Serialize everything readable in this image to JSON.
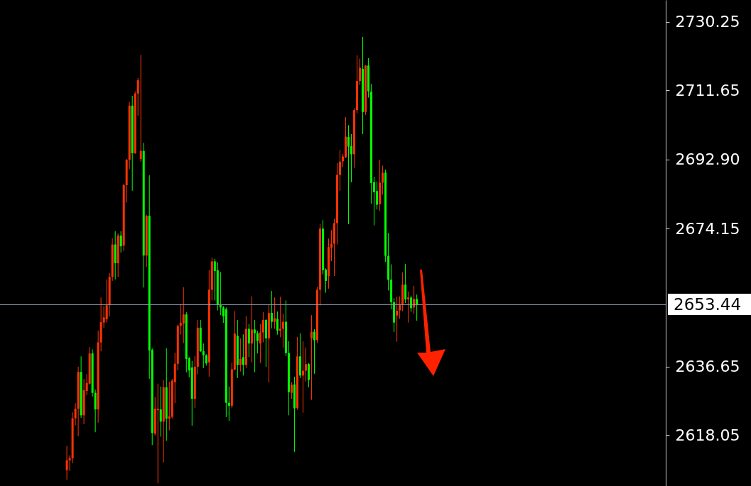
{
  "chart_data": {
    "type": "candlestick",
    "categories": [
      null,
      null,
      null,
      null,
      null,
      null,
      null,
      null,
      null,
      null,
      null,
      null,
      null,
      null,
      null,
      null,
      null,
      null,
      null,
      null,
      null,
      null,
      null,
      null,
      null,
      null,
      null,
      null,
      null,
      null,
      null,
      null,
      null,
      null,
      null,
      null,
      null,
      null,
      null,
      null,
      null,
      null,
      null,
      null,
      null,
      null,
      null,
      null,
      null,
      null,
      null,
      null,
      null,
      null,
      null,
      null,
      null,
      null,
      null,
      null,
      null,
      null,
      null,
      null,
      null,
      null,
      null,
      null,
      null,
      null,
      null,
      null,
      null,
      null,
      null,
      null,
      null,
      null,
      null,
      null,
      null,
      null,
      null,
      null,
      null,
      null,
      null,
      null,
      null,
      null,
      null,
      null,
      null,
      null,
      null,
      null,
      null,
      null,
      null,
      null,
      null,
      null,
      null,
      null,
      null,
      null,
      null,
      null,
      null,
      null,
      null,
      null,
      null,
      null,
      null,
      null,
      null,
      null,
      null,
      null,
      null,
      null,
      null,
      null,
      null,
      null,
      null,
      null,
      null,
      null,
      null,
      null,
      null,
      null,
      null,
      null,
      null,
      null,
      null,
      null,
      null,
      null,
      null,
      null,
      null,
      null,
      null,
      null,
      null,
      null,
      null,
      null,
      null,
      null,
      null,
      null,
      null,
      null,
      null,
      null,
      null,
      null,
      null,
      null,
      null,
      null,
      null,
      null,
      null,
      null,
      null,
      null,
      null,
      null,
      null,
      null,
      null,
      null,
      null,
      null,
      null,
      null,
      null,
      null,
      null,
      null,
      null,
      null,
      null,
      null,
      null,
      null,
      null,
      null,
      null,
      null,
      null,
      null,
      null,
      null,
      null,
      null,
      null,
      null,
      null,
      null,
      null,
      null,
      null,
      null,
      null,
      null,
      null,
      null,
      null,
      null,
      null,
      null,
      null,
      null,
      null,
      null,
      null,
      null,
      null,
      null,
      null,
      null,
      null,
      null,
      null,
      null,
      null,
      null
    ],
    "ohlc": [
      null,
      null,
      null,
      null,
      null,
      null,
      null,
      null,
      null,
      null,
      null,
      null,
      null,
      null,
      null,
      null,
      null,
      null,
      null,
      null,
      null,
      null,
      null,
      [
        2608.5,
        2615.1,
        2605.9,
        2611.2
      ],
      [
        2611.2,
        2612.6,
        2608.3,
        2611.8
      ],
      [
        2611.7,
        2624.2,
        2610.4,
        2622.6
      ],
      [
        2622.6,
        2626.7,
        2620.7,
        2625.2
      ],
      [
        2625.2,
        2636.6,
        2617.7,
        2635.2
      ],
      [
        2635.2,
        2639.4,
        2622.7,
        2623.4
      ],
      [
        2623.4,
        2633.3,
        2621.0,
        2630.2
      ],
      [
        2630.0,
        2634.6,
        2628.9,
        2632.2
      ],
      [
        2632.0,
        2641.9,
        2631.7,
        2640.2
      ],
      [
        2640.2,
        2641.3,
        2628.5,
        2629.5
      ],
      [
        2629.5,
        2630.4,
        2618.8,
        2625.0
      ],
      [
        2625.0,
        2646.4,
        2621.4,
        2643.2
      ],
      [
        2643.2,
        2655.4,
        2640.8,
        2648.7
      ],
      [
        2648.6,
        2653.1,
        2647.2,
        2650.0
      ],
      [
        2649.5,
        2660.3,
        2648.6,
        2653.3
      ],
      [
        2653.3,
        2662.0,
        2650.3,
        2661.0
      ],
      [
        2661.0,
        2671.5,
        2659.9,
        2669.8
      ],
      [
        2669.8,
        2673.4,
        2660.3,
        2664.7
      ],
      [
        2664.7,
        2672.8,
        2661.0,
        2672.2
      ],
      [
        2672.2,
        2673.4,
        2667.6,
        2669.3
      ],
      [
        2669.5,
        2686.3,
        2668.0,
        2685.9
      ],
      [
        2685.9,
        2693.0,
        2681.2,
        2692.8
      ],
      [
        2692.8,
        2708.5,
        2690.3,
        2707.5
      ],
      [
        2707.5,
        2710.2,
        2684.4,
        2694.6
      ],
      [
        2694.6,
        2711.4,
        2694.4,
        2710.8
      ],
      [
        2710.8,
        2715.0,
        2704.8,
        2714.4
      ],
      [
        2693.0,
        2721.3,
        2692.3,
        2695.2
      ],
      [
        2695.2,
        2697.4,
        2658.1,
        2666.8
      ],
      [
        2666.8,
        2677.9,
        2663.7,
        2677.6
      ],
      [
        2677.6,
        2688.6,
        2633.3,
        2641.0
      ],
      [
        2641.2,
        2641.6,
        2615.3,
        2618.6
      ],
      [
        2618.4,
        2628.4,
        2617.9,
        2625.2
      ],
      [
        2624.8,
        2632.0,
        2604.9,
        2625.2
      ],
      [
        2625.0,
        2631.2,
        2617.6,
        2621.7
      ],
      [
        2621.7,
        2632.9,
        2610.6,
        2631.0
      ],
      [
        2631.0,
        2641.6,
        2616.5,
        2622.5
      ],
      [
        2622.5,
        2632.5,
        2619.3,
        2623.1
      ],
      [
        2623.0,
        2633.3,
        2622.5,
        2632.8
      ],
      [
        2632.4,
        2640.4,
        2626.7,
        2637.4
      ],
      [
        2637.4,
        2648.0,
        2635.6,
        2647.7
      ],
      [
        2647.7,
        2653.7,
        2645.3,
        2648.5
      ],
      [
        2648.3,
        2658.2,
        2643.0,
        2650.8
      ],
      [
        2650.8,
        2651.4,
        2635.1,
        2638.7
      ],
      [
        2638.9,
        2639.2,
        2633.7,
        2635.6
      ],
      [
        2636.4,
        2638.2,
        2620.6,
        2627.9
      ],
      [
        2627.9,
        2639.5,
        2625.4,
        2636.6
      ],
      [
        2636.6,
        2649.3,
        2634.5,
        2647.2
      ],
      [
        2647.2,
        2649.3,
        2640.6,
        2640.8
      ],
      [
        2640.8,
        2642.9,
        2636.2,
        2639.7
      ],
      [
        2639.7,
        2640.0,
        2636.9,
        2637.5
      ],
      [
        2637.8,
        2662.8,
        2633.9,
        2657.5
      ],
      [
        2657.5,
        2666.2,
        2654.6,
        2665.2
      ],
      [
        2665.2,
        2665.9,
        2654.6,
        2662.6
      ],
      [
        2662.8,
        2665.0,
        2651.9,
        2653.5
      ],
      [
        2653.5,
        2662.3,
        2650.6,
        2652.7
      ],
      [
        2652.7,
        2653.1,
        2648.5,
        2650.3
      ],
      [
        2652.2,
        2652.7,
        2622.9,
        2626.8
      ],
      [
        2626.8,
        2631.2,
        2621.9,
        2626.0
      ],
      [
        2626.0,
        2637.7,
        2625.3,
        2635.9
      ],
      [
        2635.8,
        2651.7,
        2635.7,
        2645.6
      ],
      [
        2645.0,
        2649.3,
        2633.5,
        2637.1
      ],
      [
        2637.1,
        2644.3,
        2635.3,
        2638.7
      ],
      [
        2639.2,
        2645.4,
        2634.2,
        2637.1
      ],
      [
        2637.1,
        2650.3,
        2636.3,
        2646.9
      ],
      [
        2646.9,
        2648.2,
        2639.2,
        2642.9
      ],
      [
        2642.9,
        2655.7,
        2637.8,
        2646.7
      ],
      [
        2646.7,
        2649.3,
        2635.1,
        2645.7
      ],
      [
        2645.7,
        2646.4,
        2640.2,
        2643.6
      ],
      [
        2642.9,
        2648.2,
        2637.6,
        2645.9
      ],
      [
        2645.9,
        2651.4,
        2643.2,
        2649.3
      ],
      [
        2649.3,
        2649.5,
        2636.6,
        2644.3
      ],
      [
        2644.3,
        2653.6,
        2632.3,
        2651.2
      ],
      [
        2651.2,
        2657.2,
        2647.0,
        2648.8
      ],
      [
        2648.8,
        2655.4,
        2646.9,
        2649.8
      ],
      [
        2649.6,
        2651.6,
        2645.3,
        2646.4
      ],
      [
        2646.4,
        2655.6,
        2644.6,
        2646.9
      ],
      [
        2646.9,
        2651.0,
        2641.8,
        2648.8
      ],
      [
        2648.8,
        2654.6,
        2639.5,
        2640.3
      ],
      [
        2640.3,
        2643.5,
        2623.4,
        2629.7
      ],
      [
        2629.5,
        2632.4,
        2627.9,
        2631.7
      ],
      [
        2631.8,
        2633.9,
        2613.5,
        2625.3
      ],
      [
        2625.4,
        2644.7,
        2624.9,
        2639.4
      ],
      [
        2639.4,
        2645.7,
        2633.5,
        2634.2
      ],
      [
        2634.2,
        2643.5,
        2624.1,
        2635.5
      ],
      [
        2635.5,
        2641.8,
        2632.6,
        2637.3
      ],
      [
        2637.3,
        2637.6,
        2631.0,
        2633.0
      ],
      [
        2644.3,
        2650.6,
        2627.6,
        2646.1
      ],
      [
        2646.1,
        2646.8,
        2634.7,
        2643.8
      ],
      [
        2643.8,
        2658.3,
        2643.0,
        2657.5
      ],
      [
        2657.5,
        2675.3,
        2653.2,
        2674.1
      ],
      [
        2674.1,
        2676.4,
        2661.7,
        2662.8
      ],
      [
        2663.0,
        2663.3,
        2656.7,
        2659.9
      ],
      [
        2661.2,
        2671.4,
        2657.8,
        2669.1
      ],
      [
        2668.9,
        2673.7,
        2665.3,
        2670.0
      ],
      [
        2670.0,
        2676.8,
        2661.2,
        2675.6
      ],
      [
        2675.6,
        2691.9,
        2669.8,
        2688.7
      ],
      [
        2688.7,
        2695.5,
        2684.4,
        2692.3
      ],
      [
        2692.4,
        2694.4,
        2690.8,
        2693.7
      ],
      [
        2693.5,
        2704.4,
        2693.3,
        2699.1
      ],
      [
        2699.0,
        2702.2,
        2675.3,
        2696.4
      ],
      [
        2696.5,
        2699.8,
        2686.7,
        2694.3
      ],
      [
        2694.3,
        2706.8,
        2690.6,
        2706.3
      ],
      [
        2706.3,
        2721.2,
        2705.4,
        2714.2
      ],
      [
        2714.2,
        2720.3,
        2713.1,
        2717.8
      ],
      [
        2717.5,
        2726.2,
        2699.8,
        2705.8
      ],
      [
        2705.8,
        2718.5,
        2705.0,
        2718.4
      ],
      [
        2718.4,
        2720.4,
        2709.7,
        2711.4
      ],
      [
        2711.3,
        2713.4,
        2680.9,
        2686.5
      ],
      [
        2686.7,
        2688.2,
        2675.0,
        2684.0
      ],
      [
        2684.3,
        2686.9,
        2679.3,
        2680.6
      ],
      [
        2680.8,
        2692.8,
        2678.9,
        2686.6
      ],
      [
        2686.6,
        2691.2,
        2683.3,
        2689.3
      ],
      [
        2689.3,
        2690.1,
        2665.1,
        2666.7
      ],
      [
        2666.7,
        2672.9,
        2657.3,
        2660.2
      ],
      [
        2660.2,
        2664.4,
        2652.2,
        2654.1
      ],
      [
        2654.1,
        2655.2,
        2646.0,
        2648.6
      ],
      [
        2650.5,
        2655.6,
        2643.4,
        2651.8
      ],
      [
        2651.9,
        2655.7,
        2649.6,
        2653.6
      ],
      [
        2653.6,
        2662.2,
        2651.7,
        2658.9
      ],
      [
        2658.9,
        2664.5,
        2653.9,
        2654.9
      ],
      [
        2654.9,
        2657.0,
        2648.6,
        2655.4
      ],
      [
        2655.4,
        2655.9,
        2651.5,
        2652.5
      ],
      [
        2652.7,
        2658.6,
        2651.0,
        2655.0
      ],
      [
        2655.0,
        2656.2,
        2649.1,
        2653.44
      ],
      null,
      null,
      null,
      null,
      null,
      null,
      null,
      null,
      null,
      null,
      null,
      null,
      null,
      null,
      null,
      null,
      null,
      null,
      null,
      null,
      null,
      null,
      null,
      null,
      null,
      null,
      null,
      null,
      null,
      null,
      null,
      null,
      null,
      null,
      null,
      null,
      null,
      null,
      null,
      null,
      null,
      null,
      null,
      null,
      null,
      null,
      null,
      null,
      null,
      null,
      null,
      null,
      null,
      null,
      null,
      null,
      null,
      null,
      null,
      null,
      null,
      null,
      null,
      null,
      null,
      null,
      null,
      null,
      null,
      null,
      null,
      null,
      null,
      null,
      null,
      null,
      null,
      null,
      null,
      null,
      null,
      null,
      null,
      null,
      null,
      null,
      null
    ],
    "colors": [
      null,
      null,
      null,
      null,
      null,
      null,
      null,
      null,
      null,
      null,
      null,
      null,
      null,
      null,
      null,
      null,
      null,
      null,
      null,
      null,
      null,
      null,
      null,
      "#ff3300",
      "#ff3300",
      "#ff3300",
      "#ff3300",
      "#ff3300",
      "#00ff00",
      "#ff3300",
      "#ff3300",
      "#ff3300",
      "#00ff00",
      "#00ff00",
      "#ff3300",
      "#ff3300",
      "#ff3300",
      "#ff3300",
      "#ff3300",
      "#ff3300",
      "#00ff00",
      "#ff3300",
      "#00ff00",
      "#ff3300",
      "#ff3300",
      "#ff3300",
      "#00ff00",
      "#ff3300",
      "#ff3300",
      "#ff3300",
      "#00ff00",
      "#ff3300",
      "#00ff00",
      "#00ff00",
      "#ff3300",
      "#ff3300",
      "#00ff00",
      "#ff3300",
      "#00ff00",
      "#ff3300",
      "#ff3300",
      "#ff3300",
      "#ff3300",
      "#ff3300",
      "#ff3300",
      "#00ff00",
      "#00ff00",
      "#00ff00",
      "#ff3300",
      "#ff3300",
      "#00ff00",
      "#00ff00",
      "#00ff00",
      "#ff3300",
      "#ff3300",
      "#00ff00",
      "#00ff00",
      "#00ff00",
      "#00ff00",
      "#00ff00",
      "#00ff00",
      "#ff3300",
      "#ff3300",
      "#00ff00",
      "#ff3300",
      "#00ff00",
      "#ff3300",
      "#00ff00",
      "#ff3300",
      "#00ff00",
      "#00ff00",
      "#ff3300",
      "#ff3300",
      "#00ff00",
      "#ff3300",
      "#00ff00",
      "#ff3300",
      "#00ff00",
      "#ff3300",
      "#ff3300",
      "#00ff00",
      "#00ff00",
      "#ff3300",
      "#00ff00",
      "#ff3300",
      "#00ff00",
      "#ff3300",
      "#ff3300",
      "#00ff00",
      "#ff3300",
      "#00ff00",
      "#ff3300",
      "#ff3300",
      "#00ff00",
      "#00ff00",
      "#ff3300",
      "#ff3300",
      "#ff3300",
      "#ff3300",
      "#ff3300",
      "#ff3300",
      "#ff3300",
      "#00ff00",
      "#00ff00",
      "#ff3300",
      "#ff3300",
      "#ff3300",
      "#00ff00",
      "#ff3300",
      "#00ff00",
      "#00ff00",
      "#00ff00",
      "#00ff00",
      "#ff3300",
      "#ff3300",
      "#00ff00",
      "#00ff00",
      "#00ff00",
      "#00ff00",
      "#ff3300",
      "#ff3300",
      "#ff3300",
      "#00ff00",
      "#ff3300",
      "#00ff00",
      "#ff3300",
      "#00ff00",
      null,
      null,
      null,
      null,
      null,
      null,
      null,
      null,
      null,
      null,
      null,
      null,
      null,
      null,
      null,
      null,
      null,
      null,
      null,
      null,
      null,
      null,
      null,
      null,
      null,
      null,
      null,
      null,
      null,
      null,
      null,
      null,
      null,
      null,
      null,
      null,
      null,
      null,
      null,
      null,
      null,
      null,
      null,
      null,
      null,
      null,
      null,
      null,
      null,
      null,
      null,
      null,
      null,
      null,
      null,
      null,
      null,
      null,
      null,
      null,
      null,
      null,
      null,
      null,
      null,
      null,
      null,
      null,
      null,
      null,
      null,
      null,
      null,
      null,
      null,
      null,
      null,
      null,
      null,
      null,
      null,
      null,
      null,
      null,
      null,
      null,
      null
    ],
    "ylim": [
      2604.2,
      2736.2
    ],
    "yticks": [
      2730.25,
      2711.65,
      {
        "value": 2692.9,
        "label": "2692.90"
      },
      2674.15,
      2636.65,
      2618.05
    ],
    "ref_lines": [
      {
        "axis": "y",
        "value": 2653.44,
        "label": "2653.44",
        "color": "#8c9bb0"
      }
    ]
  }
}
